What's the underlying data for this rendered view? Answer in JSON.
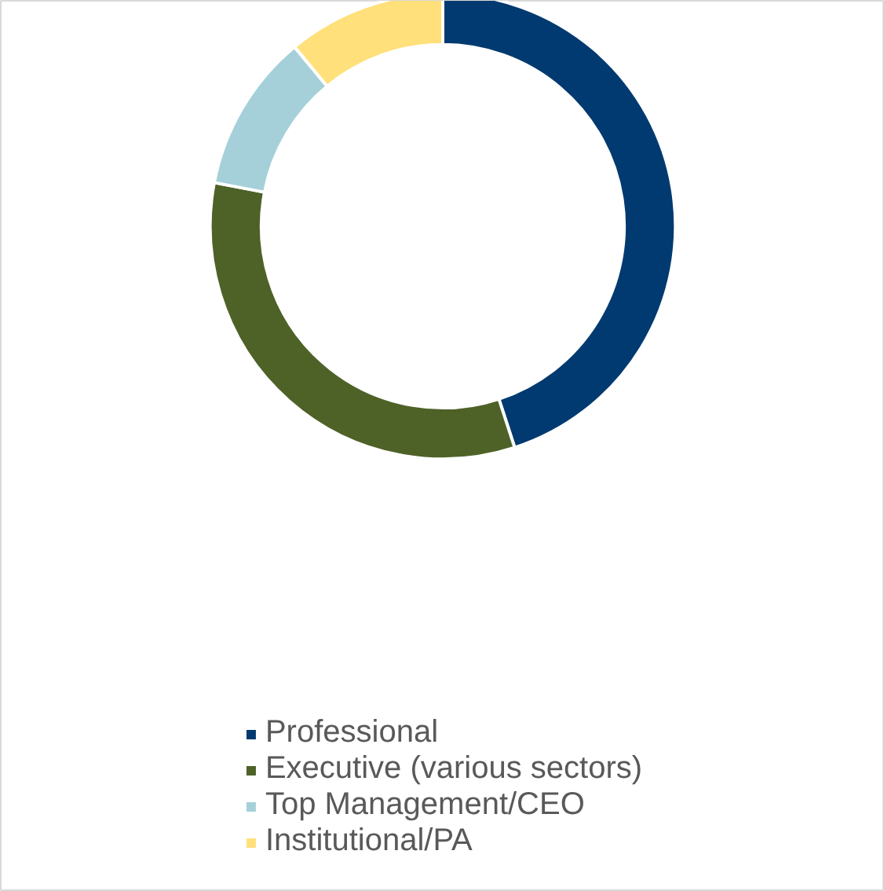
{
  "chart_data": {
    "type": "donut",
    "categories": [
      "Professional",
      "Executive (various sectors)",
      "Top Management/CEO",
      "Institutional/PA"
    ],
    "values": [
      45,
      33,
      11,
      11
    ],
    "colors": [
      "#003a70",
      "#4e6228",
      "#a5d0d9",
      "#ffe07a"
    ],
    "legend": "bottom"
  }
}
